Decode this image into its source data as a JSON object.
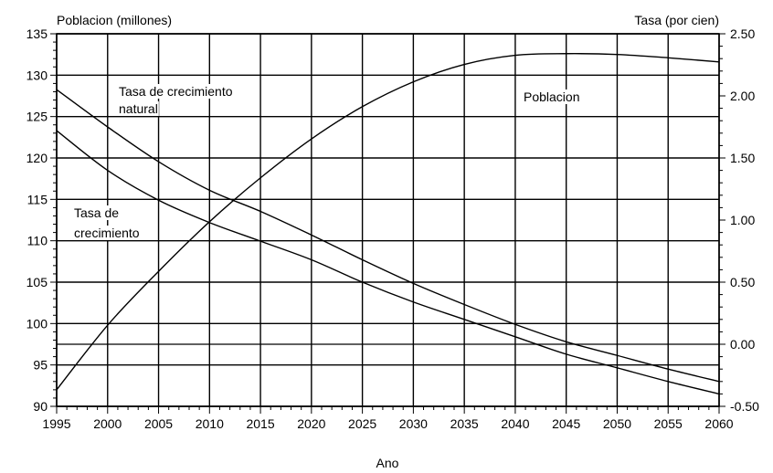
{
  "chart_data": {
    "type": "line",
    "title": "",
    "xlabel": "Ano",
    "ylabel_left": "Poblacion (millones)",
    "ylabel_right": "Tasa (por cien)",
    "xlim": [
      1995,
      2060
    ],
    "ylim_left": [
      90,
      135
    ],
    "ylim_right": [
      -0.5,
      2.5
    ],
    "x_ticks": [
      1995,
      2000,
      2005,
      2010,
      2015,
      2020,
      2025,
      2030,
      2035,
      2040,
      2045,
      2050,
      2055,
      2060
    ],
    "x_tick_labels": [
      "1995",
      "2000",
      "2005",
      "2010",
      "2015",
      "2020",
      "2025",
      "2030",
      "2035",
      "2040",
      "2045",
      "2050",
      "2055",
      "2060"
    ],
    "y_left_ticks": [
      90,
      95,
      100,
      105,
      110,
      115,
      120,
      125,
      130,
      135
    ],
    "y_left_tick_labels": [
      "90",
      "95",
      "100",
      "105",
      "110",
      "115",
      "120",
      "125",
      "130",
      "135"
    ],
    "y_right_ticks": [
      -0.5,
      0.0,
      0.5,
      1.0,
      1.5,
      2.0,
      2.5
    ],
    "y_right_tick_labels": [
      "-0.50",
      "0.00",
      "0.50",
      "1.00",
      "1.50",
      "2.00",
      "2.50"
    ],
    "grid": true,
    "legend": "none",
    "annotations": [
      {
        "lines": [
          "Tasa de crecimiento",
          "natural"
        ]
      },
      {
        "lines": [
          "Poblacion"
        ]
      },
      {
        "lines": [
          "Tasa de",
          "crecimiento"
        ]
      }
    ],
    "series": [
      {
        "axis": "left",
        "x": [
          1995,
          2000,
          2005,
          2010,
          2015,
          2020,
          2025,
          2030,
          2035,
          2040,
          2045,
          2050,
          2055,
          2060
        ],
        "values": [
          92.0,
          99.8,
          106.3,
          112.3,
          117.6,
          122.3,
          126.2,
          129.2,
          131.3,
          132.4,
          132.6,
          132.5,
          132.1,
          131.6
        ]
      },
      {
        "axis": "right",
        "x": [
          1995,
          2000,
          2005,
          2010,
          2015,
          2020,
          2025,
          2030,
          2035,
          2040,
          2045,
          2050,
          2055,
          2060
        ],
        "values": [
          2.05,
          1.75,
          1.47,
          1.24,
          1.07,
          0.88,
          0.68,
          0.49,
          0.32,
          0.16,
          0.02,
          -0.09,
          -0.2,
          -0.3
        ]
      },
      {
        "axis": "right",
        "x": [
          1995,
          2000,
          2005,
          2010,
          2015,
          2020,
          2025,
          2030,
          2035,
          2040,
          2045,
          2050,
          2055,
          2060
        ],
        "values": [
          1.72,
          1.4,
          1.16,
          0.98,
          0.83,
          0.68,
          0.5,
          0.34,
          0.2,
          0.06,
          -0.08,
          -0.19,
          -0.3,
          -0.4
        ]
      }
    ]
  }
}
